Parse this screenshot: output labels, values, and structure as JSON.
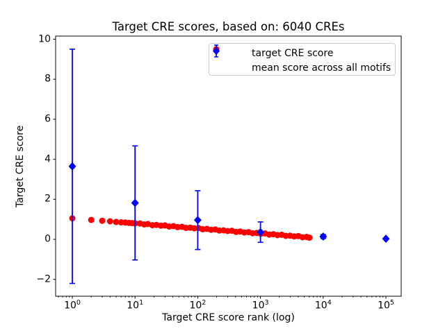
{
  "figure": {
    "title": "Target CRE scores, based on: 6040 CREs",
    "xlabel": "Target CRE score rank (log)",
    "ylabel": "Target CRE score",
    "background": "#ffffff"
  },
  "colors": {
    "target": "#ff0000",
    "mean": "#0000ff",
    "axis": "#000000",
    "legend_border": "#cccccc"
  },
  "legend": {
    "entries": [
      {
        "label": "target CRE score",
        "marker": "red-circle"
      },
      {
        "label": "mean score across all motifs",
        "marker": "blue-diamond-errorbar"
      }
    ]
  },
  "axes": {
    "x": {
      "scale": "log",
      "lim": [
        0.55,
        175000
      ],
      "ticks": [
        {
          "base": "10",
          "exp": "0",
          "value": 1
        },
        {
          "base": "10",
          "exp": "1",
          "value": 10
        },
        {
          "base": "10",
          "exp": "2",
          "value": 100
        },
        {
          "base": "10",
          "exp": "3",
          "value": 1000
        },
        {
          "base": "10",
          "exp": "4",
          "value": 10000
        },
        {
          "base": "10",
          "exp": "5",
          "value": 100000
        }
      ]
    },
    "y": {
      "scale": "linear",
      "lim": [
        -2.84,
        10.16
      ],
      "ticks": [
        {
          "label": "−2",
          "value": -2
        },
        {
          "label": "0",
          "value": 0
        },
        {
          "label": "2",
          "value": 2
        },
        {
          "label": "4",
          "value": 4
        },
        {
          "label": "6",
          "value": 6
        },
        {
          "label": "8",
          "value": 8
        },
        {
          "label": "10",
          "value": 10
        }
      ]
    }
  },
  "chart_data": {
    "type": "scatter",
    "title": "Target CRE scores, based on: 6040 CREs",
    "xlabel": "Target CRE score rank (log)",
    "ylabel": "Target CRE score",
    "x_scale": "log",
    "xlim": [
      0.55,
      175000
    ],
    "ylim": [
      -2.84,
      10.16
    ],
    "grid": false,
    "legend_position": "upper right",
    "series": [
      {
        "name": "target CRE score",
        "color": "#ff0000",
        "marker": "circle",
        "n_points_total": 6040,
        "note": "6040 points declining from ~1.05 at rank 1 to ~0.08 at rank 6040; log-spaced sample below as [rank, score]",
        "points": [
          [
            1,
            1.05
          ],
          [
            2,
            0.97
          ],
          [
            3,
            0.93
          ],
          [
            4,
            0.9
          ],
          [
            5,
            0.87
          ],
          [
            6,
            0.85
          ],
          [
            7,
            0.84
          ],
          [
            8,
            0.82
          ],
          [
            9,
            0.81
          ],
          [
            10,
            0.8
          ],
          [
            12,
            0.793
          ],
          [
            14,
            0.746
          ],
          [
            16,
            0.767
          ],
          [
            19,
            0.708
          ],
          [
            22,
            0.722
          ],
          [
            26,
            0.683
          ],
          [
            30,
            0.698
          ],
          [
            35,
            0.641
          ],
          [
            41,
            0.659
          ],
          [
            48,
            0.611
          ],
          [
            56,
            0.629
          ],
          [
            65,
            0.573
          ],
          [
            76,
            0.586
          ],
          [
            88,
            0.55
          ],
          [
            103,
            0.563
          ],
          [
            120,
            0.506
          ],
          [
            140,
            0.524
          ],
          [
            163,
            0.478
          ],
          [
            190,
            0.496
          ],
          [
            221,
            0.439
          ],
          [
            258,
            0.452
          ],
          [
            300,
            0.416
          ],
          [
            350,
            0.429
          ],
          [
            408,
            0.372
          ],
          [
            475,
            0.39
          ],
          [
            553,
            0.344
          ],
          [
            644,
            0.362
          ],
          [
            750,
            0.305
          ],
          [
            874,
            0.319
          ],
          [
            1018,
            0.282
          ],
          [
            1186,
            0.295
          ],
          [
            1381,
            0.239
          ],
          [
            1609,
            0.257
          ],
          [
            1874,
            0.21
          ],
          [
            2183,
            0.229
          ],
          [
            2543,
            0.172
          ],
          [
            2962,
            0.185
          ],
          [
            3450,
            0.148
          ],
          [
            4019,
            0.162
          ],
          [
            4681,
            0.105
          ],
          [
            5453,
            0.123
          ],
          [
            6040,
            0.082
          ]
        ]
      },
      {
        "name": "mean score across all motifs",
        "color": "#0000ff",
        "marker": "diamond",
        "error_bars": "std",
        "points": [
          {
            "rank": 1,
            "mean": 3.65,
            "std": 5.85
          },
          {
            "rank": 10,
            "mean": 1.82,
            "std": 2.85
          },
          {
            "rank": 100,
            "mean": 0.96,
            "std": 1.47
          },
          {
            "rank": 1000,
            "mean": 0.36,
            "std": 0.51
          },
          {
            "rank": 10000,
            "mean": 0.14,
            "std": 0.1
          },
          {
            "rank": 100000,
            "mean": 0.03,
            "std": 0.02
          }
        ]
      }
    ]
  }
}
